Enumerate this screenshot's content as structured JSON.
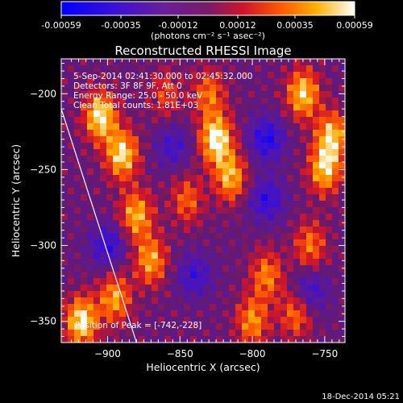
{
  "colorbar": {
    "ticks": [
      "-0.00059",
      "-0.00035",
      "-0.00012",
      "0.00012",
      "0.00035",
      "0.00059"
    ],
    "tick_values": [
      -0.00059,
      -0.00035,
      -0.00012,
      0.00012,
      0.00035,
      0.00059
    ],
    "unit_label": "(photons cm⁻² s⁻¹ asec⁻²)",
    "range": [
      -0.00059,
      0.00059
    ]
  },
  "chart_data": {
    "type": "heatmap",
    "title": "Reconstructed RHESSI Image",
    "xlabel": "Heliocentric X (arcsec)",
    "ylabel": "Heliocentric Y (arcsec)",
    "xlim": [
      -932,
      -736
    ],
    "ylim": [
      -364,
      -177
    ],
    "x_ticks": [
      -900,
      -850,
      -800,
      -750
    ],
    "y_ticks": [
      -350,
      -300,
      -250,
      -200
    ],
    "x_tick_labels": [
      "−900",
      "−850",
      "−800",
      "−750"
    ],
    "y_tick_labels": [
      "−350",
      "−300",
      "−250",
      "−200"
    ],
    "colormap": "blue-purple-red-yellow-white",
    "annotations": [
      "5-Sep-2014 02:41:30.000 to 02:45:32.000",
      "Detectors: 3F 8F 9F, Att 0",
      "Energy Range: 25.0 - 50.0 keV",
      "Clean   Total counts: 1.81E+03"
    ],
    "peak_label": "Position of Peak = [-742,-228]",
    "peak_position": [
      -742,
      -228
    ],
    "limb_line": [
      [
        -932,
        -210
      ],
      [
        -880,
        -364
      ]
    ],
    "sources": [
      {
        "x": -905,
        "y": -215,
        "amp": 0.95
      },
      {
        "x": -890,
        "y": -240,
        "amp": 0.9
      },
      {
        "x": -880,
        "y": -280,
        "amp": 0.75
      },
      {
        "x": -870,
        "y": -310,
        "amp": 0.7
      },
      {
        "x": -918,
        "y": -350,
        "amp": 0.95
      },
      {
        "x": -895,
        "y": -335,
        "amp": 0.7
      },
      {
        "x": -825,
        "y": -230,
        "amp": 1.0
      },
      {
        "x": -815,
        "y": -255,
        "amp": 0.75
      },
      {
        "x": -830,
        "y": -200,
        "amp": 0.55
      },
      {
        "x": -765,
        "y": -200,
        "amp": 0.85
      },
      {
        "x": -750,
        "y": -250,
        "amp": 0.8
      },
      {
        "x": -745,
        "y": -228,
        "amp": 0.8
      },
      {
        "x": -760,
        "y": -300,
        "amp": 0.55
      },
      {
        "x": -790,
        "y": -320,
        "amp": 0.6
      },
      {
        "x": -800,
        "y": -350,
        "amp": 0.65
      },
      {
        "x": -770,
        "y": -345,
        "amp": 0.55
      },
      {
        "x": -845,
        "y": -270,
        "amp": 0.5
      },
      {
        "x": -860,
        "y": -200,
        "amp": 0.4
      }
    ],
    "negative_regions": [
      {
        "x": -900,
        "y": -300,
        "amp": 0.6
      },
      {
        "x": -790,
        "y": -230,
        "amp": 0.7
      },
      {
        "x": -790,
        "y": -270,
        "amp": 0.6
      },
      {
        "x": -840,
        "y": -320,
        "amp": 0.5
      },
      {
        "x": -760,
        "y": -330,
        "amp": 0.5
      },
      {
        "x": -855,
        "y": -235,
        "amp": 0.45
      }
    ]
  },
  "footer": {
    "timestamp": "18-Dec-2014 05:21"
  }
}
